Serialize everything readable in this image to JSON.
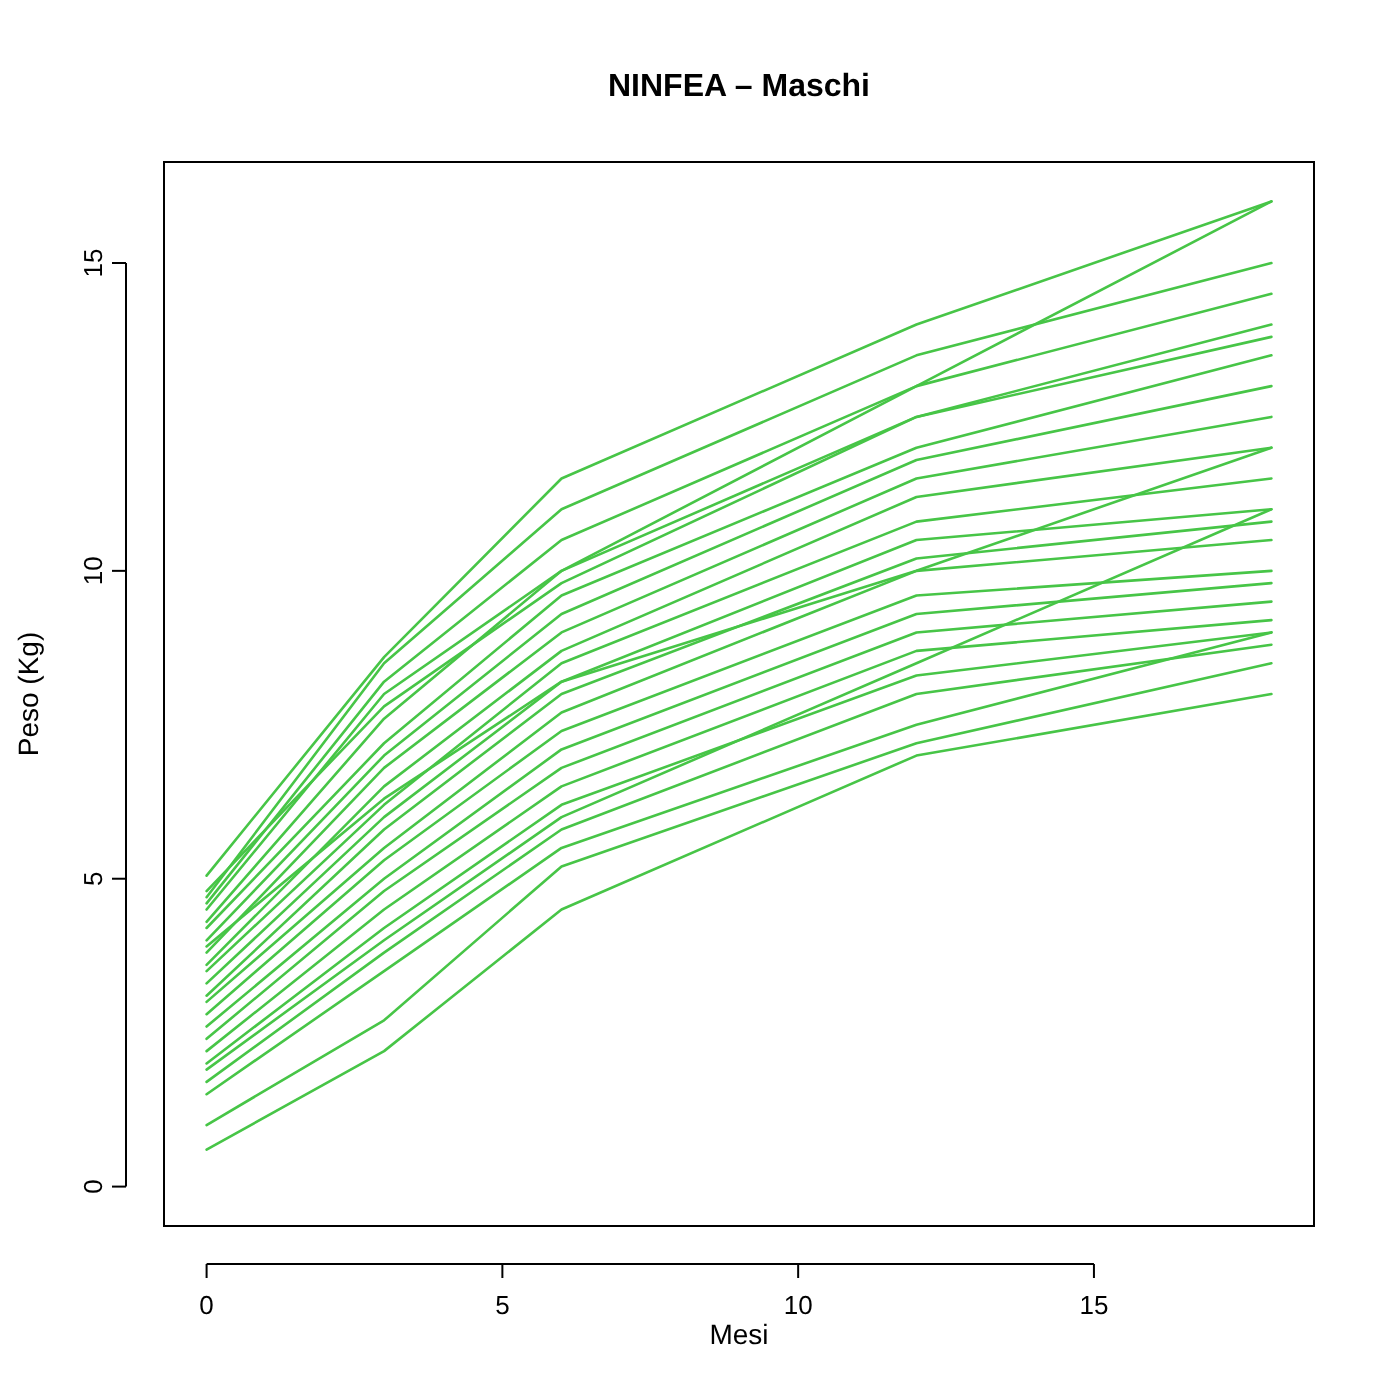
{
  "chart_data": {
    "type": "line",
    "title": "NINFEA – Maschi",
    "xlabel": "Mesi",
    "ylabel": "Peso (Kg)",
    "x": [
      0,
      3,
      6,
      12,
      18
    ],
    "xlim": [
      -0.72,
      18.72
    ],
    "ylim": [
      -0.64,
      16.64
    ],
    "xticks": [
      0,
      5,
      10,
      15
    ],
    "yticks": [
      0,
      5,
      10,
      15
    ],
    "grid": false,
    "series": [
      {
        "color": "#47c547",
        "values": [
          5.05,
          8.6,
          11.5,
          14,
          16
        ]
      },
      {
        "color": "#47c547",
        "values": [
          4.7,
          8.5,
          11,
          13.5,
          15
        ]
      },
      {
        "color": "#47c547",
        "values": [
          4.6,
          8.2,
          10.5,
          13,
          16
        ]
      },
      {
        "color": "#47c547",
        "values": [
          4.5,
          8,
          10,
          13,
          14.5
        ]
      },
      {
        "color": "#47c547",
        "values": [
          4.3,
          7.6,
          10,
          12.5,
          14
        ]
      },
      {
        "color": "#47c547",
        "values": [
          4.2,
          7.2,
          9.6,
          12,
          13.5
        ]
      },
      {
        "color": "#47c547",
        "values": [
          4,
          7,
          9.3,
          11.8,
          13
        ]
      },
      {
        "color": "#47c547",
        "values": [
          3.8,
          6.8,
          9,
          11.5,
          12.5
        ]
      },
      {
        "color": "#47c547",
        "values": [
          3.6,
          6.5,
          8.7,
          11.2,
          12
        ]
      },
      {
        "color": "#47c547",
        "values": [
          3.5,
          6.2,
          8.5,
          10.8,
          11.5
        ]
      },
      {
        "color": "#47c547",
        "values": [
          3.3,
          6,
          8.2,
          10.5,
          11
        ]
      },
      {
        "color": "#47c547",
        "values": [
          3.1,
          5.8,
          8,
          10.2,
          10.8
        ]
      },
      {
        "color": "#47c547",
        "values": [
          3,
          5.5,
          7.7,
          10,
          10.5
        ]
      },
      {
        "color": "#47c547",
        "values": [
          2.8,
          5.3,
          7.4,
          9.6,
          10
        ]
      },
      {
        "color": "#47c547",
        "values": [
          2.6,
          5,
          7.1,
          9.3,
          9.8
        ]
      },
      {
        "color": "#47c547",
        "values": [
          2.4,
          4.8,
          6.8,
          9,
          9.5
        ]
      },
      {
        "color": "#47c547",
        "values": [
          2.2,
          4.5,
          6.5,
          8.7,
          9.2
        ]
      },
      {
        "color": "#47c547",
        "values": [
          2,
          4.2,
          6.2,
          8.3,
          9
        ]
      },
      {
        "color": "#47c547",
        "values": [
          1.7,
          3.8,
          5.8,
          8,
          8.8
        ]
      },
      {
        "color": "#47c547",
        "values": [
          1.5,
          3.5,
          5.5,
          7.5,
          9
        ]
      },
      {
        "color": "#47c547",
        "values": [
          1.0,
          2.7,
          5.2,
          7.2,
          8.5
        ]
      },
      {
        "color": "#47c547",
        "values": [
          0.6,
          2.2,
          4.5,
          7,
          8
        ]
      },
      {
        "color": "#47c547",
        "values": [
          4.8,
          7.8,
          9.8,
          12.5,
          13.8
        ]
      },
      {
        "color": "#47c547",
        "values": [
          1.9,
          4,
          6,
          8.5,
          11
        ]
      },
      {
        "color": "#47c547",
        "values": [
          3.9,
          6.3,
          8.2,
          10,
          12
        ]
      }
    ]
  }
}
